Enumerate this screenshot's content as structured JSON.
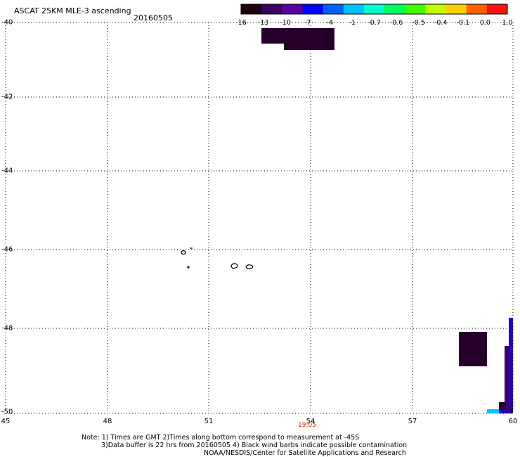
{
  "header": {
    "title": "ASCAT 25KM MLE-3 ascending",
    "date": "20160505"
  },
  "colorbar": {
    "labels": [
      "-16",
      "-13",
      "-10",
      "-7",
      "-4",
      "-1",
      "-0.7",
      "-0.6",
      "-0.5",
      "-0.4",
      "-0.1",
      "0.0",
      "1.0"
    ],
    "colors": [
      "#200010",
      "#3a0060",
      "#5a00a0",
      "#0000ff",
      "#0060ff",
      "#00c0ff",
      "#00ffd0",
      "#00ff60",
      "#40ff00",
      "#c0ff00",
      "#ffd000",
      "#ff6000",
      "#ff1010"
    ]
  },
  "map": {
    "lon_range": [
      45,
      60
    ],
    "lat_range": [
      -50,
      -40
    ],
    "x_ticks": [
      "45",
      "48",
      "51",
      "54",
      "57",
      "60"
    ],
    "y_ticks": [
      "-40",
      "-42",
      "-44",
      "-46",
      "-48",
      "-50"
    ],
    "time_label": "19:05"
  },
  "notes": {
    "line1": "Note: 1) Times are GMT 2)Times along bottom correspond to measurement at -45S",
    "line2": "3)Data buffer is 22 hrs from 20160505 4) Black wind barbs indicate possible contamination",
    "line3": "NOAA/NESDIS/Center for Satellite Applications and Research"
  },
  "colors": {
    "swath_dark": "#26002a",
    "swath_purple": "#4a0090",
    "swath_blue": "#2000c0",
    "swath_cyan": "#00c8ff",
    "time_label": "#cc2200"
  }
}
